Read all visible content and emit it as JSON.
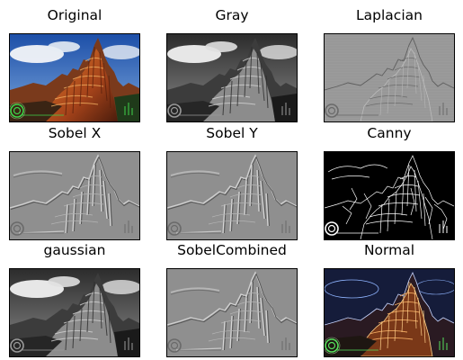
{
  "panels": [
    {
      "id": "original",
      "title": "Original",
      "style": "color"
    },
    {
      "id": "gray",
      "title": "Gray",
      "style": "gray"
    },
    {
      "id": "laplacian",
      "title": "Laplacian",
      "style": "laplacian"
    },
    {
      "id": "sobelx",
      "title": "Sobel X",
      "style": "emboss"
    },
    {
      "id": "sobely",
      "title": "Sobel Y",
      "style": "emboss"
    },
    {
      "id": "canny",
      "title": "Canny",
      "style": "canny"
    },
    {
      "id": "gaussian",
      "title": "gaussian",
      "style": "gray"
    },
    {
      "id": "sobelcombined",
      "title": "SobelCombined",
      "style": "emboss"
    },
    {
      "id": "normal",
      "title": "Normal",
      "style": "normal"
    }
  ]
}
